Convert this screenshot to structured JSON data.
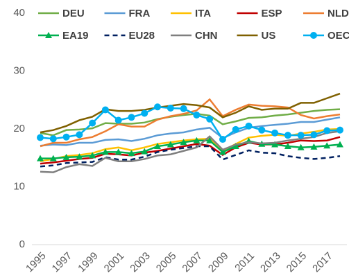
{
  "chart_data": {
    "type": "line",
    "x": [
      1995,
      1996,
      1997,
      1998,
      1999,
      2000,
      2001,
      2002,
      2003,
      2004,
      2005,
      2006,
      2007,
      2008,
      2009,
      2010,
      2011,
      2012,
      2013,
      2014,
      2015,
      2016,
      2017,
      2018
    ],
    "xlim": [
      1995,
      2018
    ],
    "xticks": [
      1995,
      1997,
      1999,
      2001,
      2003,
      2005,
      2007,
      2009,
      2011,
      2013,
      2015,
      2017
    ],
    "ylim": [
      0,
      40
    ],
    "yticks": [
      0,
      10,
      20,
      30,
      40
    ],
    "grid": false,
    "series": [
      {
        "name": "DEU",
        "color": "#70ad47",
        "values": [
          19.3,
          18.9,
          19.8,
          19.9,
          20.1,
          21.0,
          20.9,
          20.9,
          21.1,
          21.7,
          22.1,
          22.4,
          22.6,
          22.3,
          20.8,
          21.3,
          21.9,
          22.0,
          22.3,
          22.5,
          22.8,
          23.1,
          23.3,
          23.4
        ]
      },
      {
        "name": "FRA",
        "color": "#5b9bd5",
        "values": [
          17.1,
          17.3,
          17.2,
          17.6,
          17.6,
          18.1,
          18.2,
          17.9,
          18.3,
          18.9,
          19.2,
          19.4,
          19.9,
          20.2,
          18.4,
          19.4,
          20.2,
          20.5,
          20.7,
          20.9,
          21.2,
          21.2,
          21.6,
          22.0
        ]
      },
      {
        "name": "ITA",
        "color": "#ffc000",
        "values": [
          14.4,
          14.8,
          15.3,
          15.5,
          15.8,
          16.5,
          16.8,
          16.3,
          16.8,
          17.4,
          17.7,
          18.0,
          18.2,
          18.3,
          16.2,
          17.4,
          18.5,
          18.8,
          19.0,
          18.8,
          19.2,
          19.5,
          19.9,
          20.0
        ]
      },
      {
        "name": "ESP",
        "color": "#c00000",
        "values": [
          14.0,
          14.2,
          14.5,
          14.8,
          15.0,
          15.7,
          15.6,
          15.4,
          15.9,
          16.2,
          16.6,
          17.0,
          17.4,
          17.1,
          15.5,
          16.8,
          17.6,
          17.3,
          17.3,
          17.6,
          18.0,
          17.9,
          18.0,
          18.6
        ]
      },
      {
        "name": "NLD",
        "color": "#ed7d31",
        "values": [
          17.0,
          17.6,
          17.6,
          18.2,
          18.6,
          19.6,
          20.8,
          20.4,
          20.4,
          21.6,
          22.2,
          22.6,
          23.2,
          25.1,
          22.2,
          23.3,
          24.2,
          24.0,
          23.9,
          23.7,
          22.4,
          21.8,
          22.2,
          22.5
        ]
      },
      {
        "name": "EA19",
        "color": "#00b050",
        "marker": "triangle",
        "values": [
          14.9,
          14.9,
          15.1,
          15.2,
          15.4,
          16.0,
          16.0,
          15.8,
          16.1,
          17.0,
          17.3,
          17.7,
          18.0,
          18.0,
          16.0,
          17.0,
          17.9,
          17.4,
          17.3,
          17.0,
          16.8,
          16.9,
          17.1,
          17.3
        ]
      },
      {
        "name": "EU28",
        "color": "#002060",
        "dash": true,
        "values": [
          13.5,
          13.7,
          14.1,
          14.2,
          14.3,
          15.1,
          14.7,
          14.7,
          15.2,
          16.0,
          16.4,
          16.7,
          17.0,
          17.0,
          14.7,
          15.5,
          16.3,
          15.9,
          15.8,
          15.3,
          15.0,
          14.8,
          15.0,
          15.3
        ]
      },
      {
        "name": "CHN",
        "color": "#7f7f7f",
        "values": [
          12.6,
          12.5,
          13.4,
          13.9,
          13.6,
          15.0,
          14.4,
          14.4,
          14.8,
          15.4,
          15.6,
          16.2,
          16.8,
          18.7,
          16.4,
          17.3,
          17.7,
          17.5,
          17.6,
          18.0,
          18.3,
          18.6,
          19.3,
          19.6
        ]
      },
      {
        "name": "US",
        "color": "#7f6000",
        "values": [
          19.4,
          19.8,
          20.5,
          21.5,
          22.1,
          23.4,
          23.1,
          23.1,
          23.3,
          23.7,
          24.0,
          24.3,
          24.1,
          23.7,
          22.0,
          22.8,
          23.9,
          23.3,
          23.5,
          23.5,
          24.5,
          24.5,
          25.3,
          26.1
        ]
      },
      {
        "name": "OECD",
        "color": "#00b0f0",
        "marker": "circle",
        "values": [
          18.5,
          18.3,
          18.6,
          19.0,
          21.0,
          23.3,
          21.5,
          22.0,
          22.7,
          23.8,
          23.6,
          23.5,
          22.4,
          21.7,
          18.2,
          19.9,
          20.5,
          19.8,
          19.3,
          18.9,
          18.9,
          19.0,
          19.7,
          19.8
        ]
      }
    ]
  }
}
